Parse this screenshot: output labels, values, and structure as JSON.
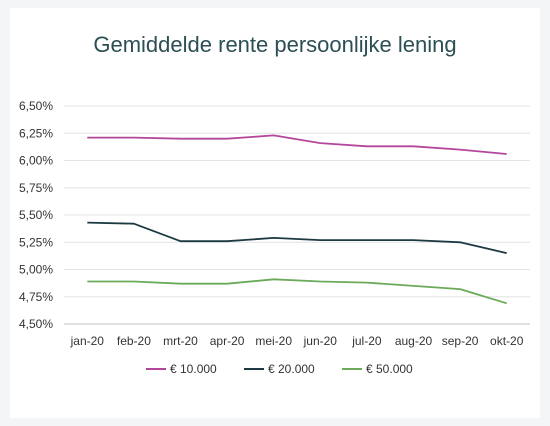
{
  "chart_data": {
    "type": "line",
    "title": "Gemiddelde rente persoonlijke lening",
    "xlabel": "",
    "ylabel": "",
    "categories": [
      "jan-20",
      "feb-20",
      "mrt-20",
      "apr-20",
      "mei-20",
      "jun-20",
      "jul-20",
      "aug-20",
      "sep-20",
      "okt-20"
    ],
    "yticks": [
      "4,50%",
      "4,75%",
      "5,00%",
      "5,25%",
      "5,50%",
      "5,75%",
      "6,00%",
      "6,25%",
      "6,50%"
    ],
    "ylim": [
      4.5,
      6.5
    ],
    "grid": true,
    "legend_position": "bottom",
    "series": [
      {
        "name": "€ 10.000",
        "color": "#b5479b",
        "values": [
          6.21,
          6.21,
          6.2,
          6.2,
          6.23,
          6.16,
          6.13,
          6.13,
          6.1,
          6.06
        ]
      },
      {
        "name": "€ 20.000",
        "color": "#1d3a43",
        "values": [
          5.43,
          5.42,
          5.26,
          5.26,
          5.29,
          5.27,
          5.27,
          5.27,
          5.25,
          5.15
        ]
      },
      {
        "name": "€ 50.000",
        "color": "#6aaa5a",
        "values": [
          4.89,
          4.89,
          4.87,
          4.87,
          4.91,
          4.89,
          4.88,
          4.85,
          4.82,
          4.69
        ]
      }
    ]
  }
}
